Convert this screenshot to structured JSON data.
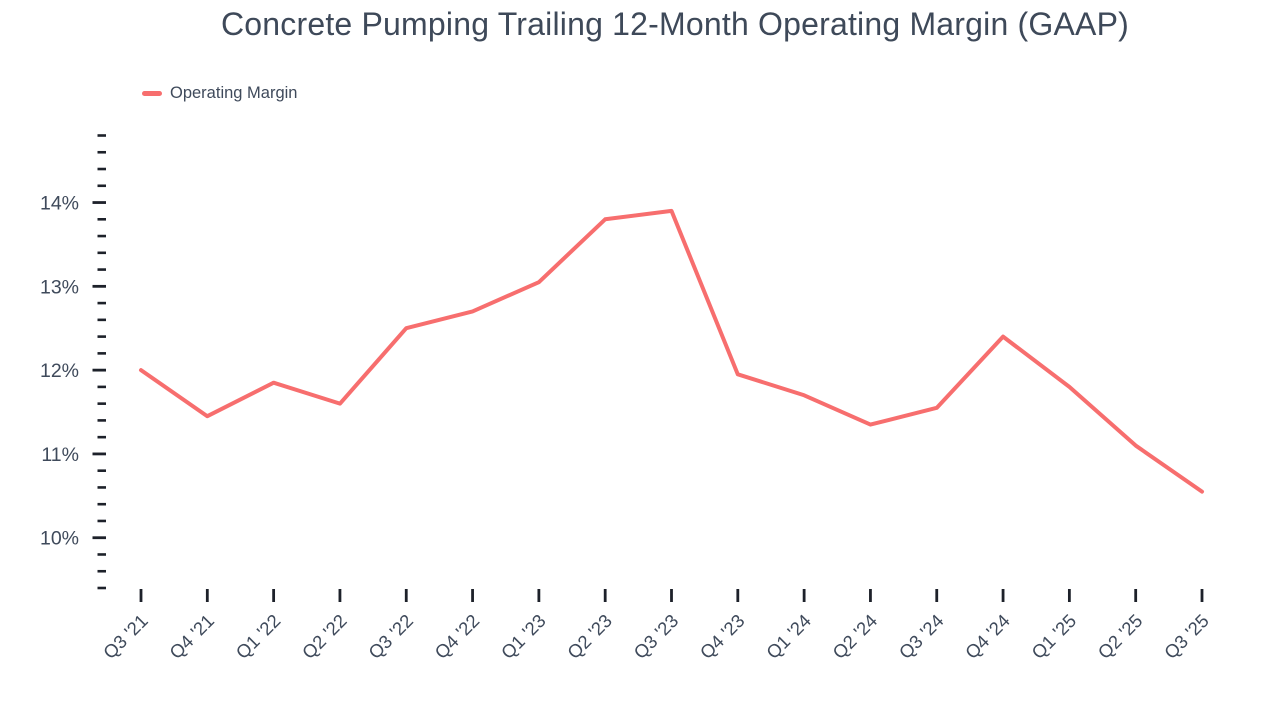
{
  "chart": {
    "title": "Concrete Pumping Trailing 12-Month Operating Margin (GAAP)",
    "legend": {
      "label": "Operating Margin"
    }
  },
  "colors": {
    "background": "#FFFFFF",
    "text": "#3F4A5B",
    "title_text": "#3E4959",
    "tick": "#1D212A",
    "line": "#F76E6E"
  },
  "chart_data": {
    "type": "line",
    "title": "Concrete Pumping Trailing 12-Month Operating Margin (GAAP)",
    "categories": [
      "Q3 '21",
      "Q4 '21",
      "Q1 '22",
      "Q2 '22",
      "Q3 '22",
      "Q4 '22",
      "Q1 '23",
      "Q2 '23",
      "Q3 '23",
      "Q4 '23",
      "Q1 '24",
      "Q2 '24",
      "Q3 '24",
      "Q4 '24",
      "Q1 '25",
      "Q2 '25",
      "Q3 '25"
    ],
    "series": [
      {
        "name": "Operating Margin",
        "color": "#F76E6E",
        "values": [
          12.0,
          11.45,
          11.85,
          11.6,
          12.5,
          12.7,
          13.05,
          13.8,
          13.9,
          11.95,
          11.7,
          11.35,
          11.55,
          12.4,
          11.8,
          11.1,
          10.55
        ]
      }
    ],
    "unit": "%",
    "xlabel": "",
    "ylabel": "",
    "ylim": [
      9.4,
      14.8
    ],
    "y_major_ticks": [
      10,
      11,
      12,
      13,
      14
    ],
    "y_major_tick_labels": [
      "10%",
      "11%",
      "12%",
      "13%",
      "14%"
    ],
    "y_minor_tick_step": 0.2,
    "grid": false,
    "legend_position": "top-left",
    "x_tick_label_rotation_deg": 45
  }
}
